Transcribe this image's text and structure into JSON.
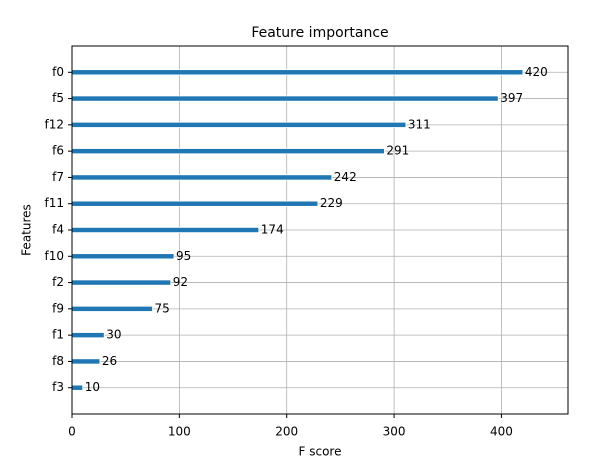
{
  "chart_data": {
    "type": "barh",
    "title": "Feature importance",
    "x_label": "F score",
    "y_label": "Features",
    "categories": [
      "f0",
      "f5",
      "f12",
      "f6",
      "f7",
      "f11",
      "f4",
      "f10",
      "f2",
      "f9",
      "f1",
      "f8",
      "f3"
    ],
    "values": [
      420,
      397,
      311,
      291,
      242,
      229,
      174,
      95,
      92,
      75,
      30,
      26,
      10
    ],
    "color": "#1f77b4",
    "xlim": [
      0,
      462
    ],
    "xticks": [
      0,
      100,
      200,
      300,
      400
    ],
    "grid": true
  }
}
